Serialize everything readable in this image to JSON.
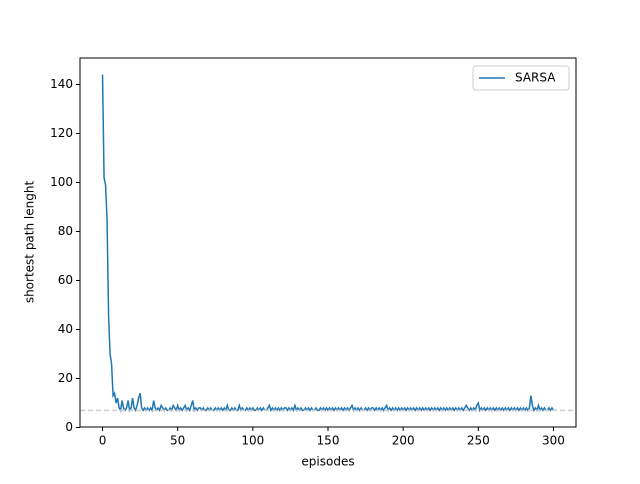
{
  "chart_data": {
    "type": "line",
    "xlabel": "episodes",
    "ylabel": "shortest path lenght",
    "x": [
      0,
      1,
      2,
      3,
      4,
      5,
      6,
      7,
      8,
      9,
      10,
      11,
      12,
      13,
      14,
      15,
      16,
      17,
      18,
      19,
      20,
      21,
      22,
      23,
      24,
      25,
      26,
      27,
      28,
      29,
      30,
      31,
      32,
      33,
      34,
      35,
      36,
      37,
      38,
      39,
      40,
      41,
      42,
      43,
      44,
      45,
      46,
      47,
      48,
      49,
      50,
      51,
      52,
      53,
      54,
      55,
      56,
      57,
      58,
      59,
      60,
      61,
      62,
      63,
      64,
      65,
      66,
      67,
      68,
      69,
      70,
      71,
      72,
      73,
      74,
      75,
      76,
      77,
      78,
      79,
      80,
      81,
      82,
      83,
      84,
      85,
      86,
      87,
      88,
      89,
      90,
      91,
      92,
      93,
      94,
      95,
      96,
      97,
      98,
      99,
      100,
      101,
      102,
      103,
      104,
      105,
      106,
      107,
      108,
      109,
      110,
      111,
      112,
      113,
      114,
      115,
      116,
      117,
      118,
      119,
      120,
      121,
      122,
      123,
      124,
      125,
      126,
      127,
      128,
      129,
      130,
      131,
      132,
      133,
      134,
      135,
      136,
      137,
      138,
      139,
      140,
      141,
      142,
      143,
      144,
      145,
      146,
      147,
      148,
      149,
      150,
      151,
      152,
      153,
      154,
      155,
      156,
      157,
      158,
      159,
      160,
      161,
      162,
      163,
      164,
      165,
      166,
      167,
      168,
      169,
      170,
      171,
      172,
      173,
      174,
      175,
      176,
      177,
      178,
      179,
      180,
      181,
      182,
      183,
      184,
      185,
      186,
      187,
      188,
      189,
      190,
      191,
      192,
      193,
      194,
      195,
      196,
      197,
      198,
      199,
      200,
      201,
      202,
      203,
      204,
      205,
      206,
      207,
      208,
      209,
      210,
      211,
      212,
      213,
      214,
      215,
      216,
      217,
      218,
      219,
      220,
      221,
      222,
      223,
      224,
      225,
      226,
      227,
      228,
      229,
      230,
      231,
      232,
      233,
      234,
      235,
      236,
      237,
      238,
      239,
      240,
      241,
      242,
      243,
      244,
      245,
      246,
      247,
      248,
      249,
      250,
      251,
      252,
      253,
      254,
      255,
      256,
      257,
      258,
      259,
      260,
      261,
      262,
      263,
      264,
      265,
      266,
      267,
      268,
      269,
      270,
      271,
      272,
      273,
      274,
      275,
      276,
      277,
      278,
      279,
      280,
      281,
      282,
      283,
      284,
      285,
      286,
      287,
      288,
      289,
      290,
      291,
      292,
      293,
      294,
      295,
      296,
      297,
      298,
      299,
      300
    ],
    "series": [
      {
        "name": "SARSA",
        "color": "#1f77b4",
        "values": [
          144,
          102,
          99,
          85,
          46,
          30,
          26,
          13,
          14,
          10,
          12,
          8,
          7,
          11,
          8,
          7,
          8,
          11,
          7,
          8,
          12,
          8,
          7,
          9,
          12,
          14,
          8,
          7,
          8,
          7,
          8,
          7,
          8,
          7,
          11,
          8,
          7,
          8,
          7,
          9,
          8,
          7,
          8,
          7,
          7,
          8,
          7,
          9,
          8,
          7,
          9,
          7,
          8,
          7,
          8,
          9,
          7,
          8,
          7,
          9,
          11,
          7,
          8,
          7,
          8,
          8,
          7,
          8,
          7,
          7,
          8,
          7,
          8,
          7,
          7,
          8,
          7,
          8,
          7,
          8,
          7,
          8,
          7,
          9,
          7,
          7,
          8,
          7,
          8,
          7,
          7,
          9,
          7,
          8,
          7,
          7,
          8,
          7,
          8,
          7,
          8,
          7,
          7,
          8,
          7,
          8,
          7,
          8,
          7,
          7,
          8,
          9,
          7,
          8,
          7,
          8,
          7,
          8,
          7,
          8,
          7,
          8,
          8,
          7,
          8,
          7,
          8,
          7,
          9,
          7,
          8,
          7,
          8,
          7,
          7,
          8,
          7,
          8,
          7,
          8,
          7,
          7,
          8,
          7,
          7,
          8,
          7,
          8,
          7,
          8,
          7,
          8,
          7,
          8,
          7,
          8,
          7,
          8,
          7,
          8,
          7,
          8,
          7,
          8,
          7,
          8,
          9,
          7,
          8,
          7,
          8,
          7,
          8,
          7,
          7,
          8,
          7,
          8,
          7,
          8,
          8,
          7,
          8,
          7,
          8,
          7,
          8,
          7,
          8,
          9,
          7,
          8,
          7,
          8,
          7,
          8,
          7,
          8,
          7,
          8,
          7,
          8,
          7,
          8,
          7,
          8,
          7,
          8,
          7,
          8,
          7,
          8,
          7,
          8,
          7,
          8,
          7,
          8,
          7,
          8,
          7,
          8,
          7,
          8,
          7,
          8,
          7,
          8,
          7,
          8,
          7,
          8,
          7,
          8,
          7,
          8,
          7,
          8,
          7,
          8,
          7,
          8,
          9,
          8,
          7,
          8,
          7,
          8,
          7,
          9,
          10,
          7,
          8,
          7,
          8,
          7,
          8,
          7,
          8,
          7,
          8,
          7,
          8,
          7,
          8,
          7,
          8,
          7,
          8,
          7,
          8,
          7,
          8,
          7,
          8,
          7,
          8,
          7,
          8,
          7,
          8,
          7,
          8,
          7,
          8,
          13,
          9,
          7,
          8,
          7,
          9,
          7,
          8,
          7,
          8,
          7,
          7,
          8,
          7,
          8,
          7
        ]
      }
    ],
    "hline": {
      "value": 7,
      "color": "#cccccc"
    },
    "xlim": [
      -15,
      315
    ],
    "ylim": [
      0.2,
      150.8
    ],
    "xticks": [
      0,
      50,
      100,
      150,
      200,
      250,
      300
    ],
    "yticks": [
      0,
      20,
      40,
      60,
      80,
      100,
      120,
      140
    ],
    "legend": "upper right"
  }
}
